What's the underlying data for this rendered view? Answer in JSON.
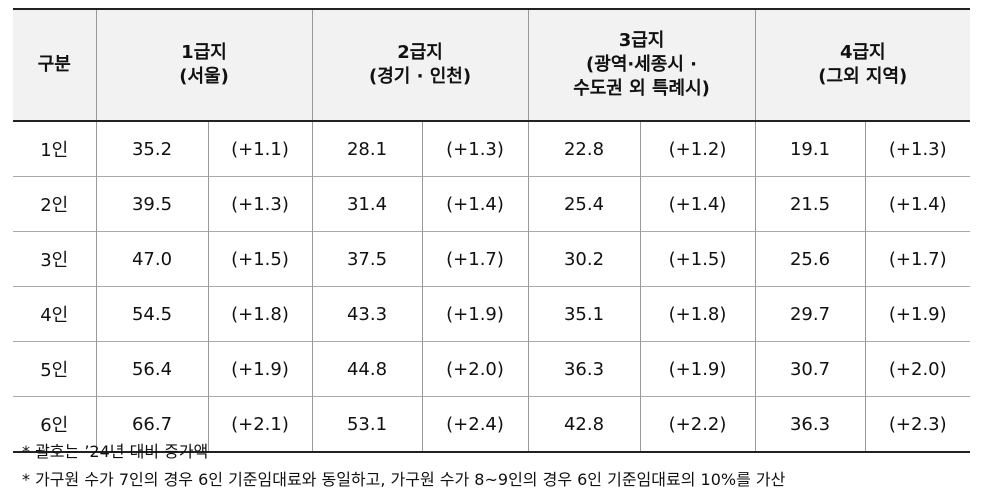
{
  "table": {
    "header": [
      [
        "구분"
      ],
      [
        "1급지",
        "(서울)"
      ],
      [
        "2급지",
        "(경기 · 인천)"
      ],
      [
        "3급지",
        "(광역·세종시 ·",
        "수도권 외 특례시)"
      ],
      [
        "4급지",
        "(그외 지역)"
      ]
    ],
    "rows": [
      [
        "1인",
        "35.2",
        "(+1.1)",
        "28.1",
        "(+1.3)",
        "22.8",
        "(+1.2)",
        "19.1",
        "(+1.3)"
      ],
      [
        "2인",
        "39.5",
        "(+1.3)",
        "31.4",
        "(+1.4)",
        "25.4",
        "(+1.4)",
        "21.5",
        "(+1.4)"
      ],
      [
        "3인",
        "47.0",
        "(+1.5)",
        "37.5",
        "(+1.7)",
        "30.2",
        "(+1.5)",
        "25.6",
        "(+1.7)"
      ],
      [
        "4인",
        "54.5",
        "(+1.8)",
        "43.3",
        "(+1.9)",
        "35.1",
        "(+1.8)",
        "29.7",
        "(+1.9)"
      ],
      [
        "5인",
        "56.4",
        "(+1.9)",
        "44.8",
        "(+2.0)",
        "36.3",
        "(+1.9)",
        "30.7",
        "(+2.0)"
      ],
      [
        "6인",
        "66.7",
        "(+2.1)",
        "53.1",
        "(+2.4)",
        "42.8",
        "(+2.2)",
        "36.3",
        "(+2.3)"
      ]
    ]
  },
  "notes": [
    "* 괄호는 ’24년 대비 증가액",
    "* 가구원 수가 7인의 경우 6인 기준임대료와 동일하고, 가구원 수가 8~9인의 경우 6인 기준임대료의 10%를 가산"
  ]
}
